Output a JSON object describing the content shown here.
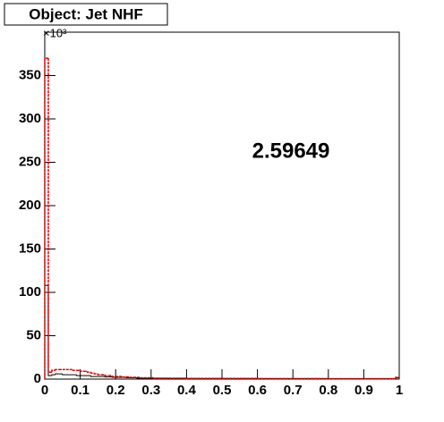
{
  "chart_data": {
    "type": "histogram",
    "title": "Object: Jet NHF",
    "y_multiplier": "×10³",
    "annotation": "2.59649",
    "bins": [
      0,
      0.01,
      0.02,
      0.03,
      0.04,
      0.05,
      0.06,
      0.07,
      0.08,
      0.09,
      0.1,
      0.11,
      0.12,
      0.13,
      0.14,
      0.15,
      0.16,
      0.17,
      0.18,
      0.19,
      0.2,
      0.21,
      0.22,
      0.23,
      0.24,
      0.25,
      0.26,
      0.27,
      0.28,
      0.29,
      0.3,
      0.31,
      0.32,
      0.33,
      0.34,
      0.35,
      0.36,
      0.37,
      0.38,
      0.39,
      0.4,
      0.41,
      0.42,
      0.43,
      0.44,
      0.45,
      0.46,
      0.47,
      0.48,
      0.49,
      0.5,
      0.51,
      0.52,
      0.53,
      0.54,
      0.55,
      0.56,
      0.57,
      0.58,
      0.59,
      0.6,
      0.61,
      0.62,
      0.63,
      0.64,
      0.65,
      0.66,
      0.67,
      0.68,
      0.69,
      0.7,
      0.71,
      0.72,
      0.73,
      0.74,
      0.75,
      0.76,
      0.77,
      0.78,
      0.79,
      0.8,
      0.81,
      0.82,
      0.83,
      0.84,
      0.85,
      0.86,
      0.87,
      0.88,
      0.89,
      0.9,
      0.91,
      0.92,
      0.93,
      0.94,
      0.95,
      0.96,
      0.97,
      0.98,
      0.99,
      1
    ],
    "series": [
      {
        "color": "#000000",
        "values": [
          108,
          4,
          5,
          6,
          6,
          5,
          5,
          5,
          5,
          4,
          4,
          4,
          4,
          3,
          3,
          3,
          3,
          2.5,
          2.5,
          2,
          2,
          2,
          2,
          1.5,
          1.5,
          1.5,
          1,
          1,
          1,
          1,
          1,
          1,
          1,
          1,
          1,
          0.8,
          0.8,
          0.8,
          0.8,
          0.8,
          0.6,
          0.6,
          0.6,
          0.6,
          0.6,
          0.6,
          0.6,
          0.6,
          0.6,
          0.6,
          0.6,
          0.6,
          0.6,
          0.6,
          0.6,
          0.6,
          0.6,
          0.6,
          0.6,
          0.6,
          0.5,
          0.5,
          0.5,
          0.5,
          0.5,
          0.5,
          0.5,
          0.5,
          0.5,
          0.5,
          0.5,
          0.5,
          0.5,
          0.5,
          0.5,
          0.5,
          0.5,
          0.5,
          0.5,
          0.5,
          0.4,
          0.4,
          0.4,
          0.4,
          0.4,
          0.4,
          0.4,
          0.4,
          0.4,
          0.4,
          0.4,
          0.4,
          0.4,
          0.4,
          0.4,
          0.4,
          0.4,
          0.4,
          0.4,
          1.5
        ]
      },
      {
        "color": "#dd0000",
        "values": [
          370,
          8,
          10,
          11,
          11,
          11,
          11,
          11,
          10,
          10,
          9,
          9,
          8,
          7,
          6,
          5,
          5,
          4,
          4,
          3,
          3,
          3,
          2.5,
          2.5,
          2,
          2,
          2,
          1.5,
          1.5,
          1.5,
          1.5,
          1,
          1,
          1,
          1,
          1,
          1,
          1,
          1,
          1,
          0.8,
          0.8,
          0.8,
          0.8,
          0.8,
          0.8,
          0.8,
          0.8,
          0.8,
          0.8,
          0.8,
          0.8,
          0.8,
          0.8,
          0.8,
          0.8,
          0.8,
          0.8,
          0.8,
          0.8,
          0.6,
          0.6,
          0.6,
          0.6,
          0.6,
          0.6,
          0.6,
          0.6,
          0.6,
          0.6,
          0.6,
          0.6,
          0.6,
          0.6,
          0.6,
          0.6,
          0.6,
          0.6,
          0.6,
          0.6,
          0.5,
          0.5,
          0.5,
          0.5,
          0.5,
          0.5,
          0.5,
          0.5,
          0.5,
          0.5,
          0.5,
          0.5,
          0.5,
          0.5,
          0.5,
          0.5,
          0.5,
          0.5,
          0.5,
          2
        ]
      }
    ],
    "xlim": [
      0,
      1
    ],
    "xticks": [
      0,
      0.1,
      0.2,
      0.3,
      0.4,
      0.5,
      0.6,
      0.7,
      0.8,
      0.9,
      1
    ],
    "ylim": [
      0,
      400
    ],
    "yticks": [
      0,
      50,
      100,
      150,
      200,
      250,
      300,
      350
    ]
  }
}
